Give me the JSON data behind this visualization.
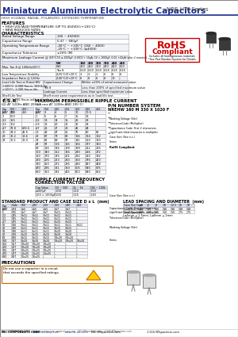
{
  "title": "Miniature Aluminum Electrolytic Capacitors",
  "series": "NRE-HW Series",
  "subtitle": "HIGH VOLTAGE, RADIAL, POLARIZED, EXTENDED TEMPERATURE",
  "features": [
    "HIGH VOLTAGE/TEMPERATURE (UP TO 450VDC/+105°C)",
    "NEW REDUCED SIZES"
  ],
  "bg_color": "#ffffff",
  "header_color": "#1a2d8a",
  "title_line_color": "#1a2d8a",
  "table_bg1": "#f0f2f8",
  "table_bg2": "#ffffff",
  "table_hdr_bg": "#d8ddf0",
  "table_border": "#aaaaaa"
}
